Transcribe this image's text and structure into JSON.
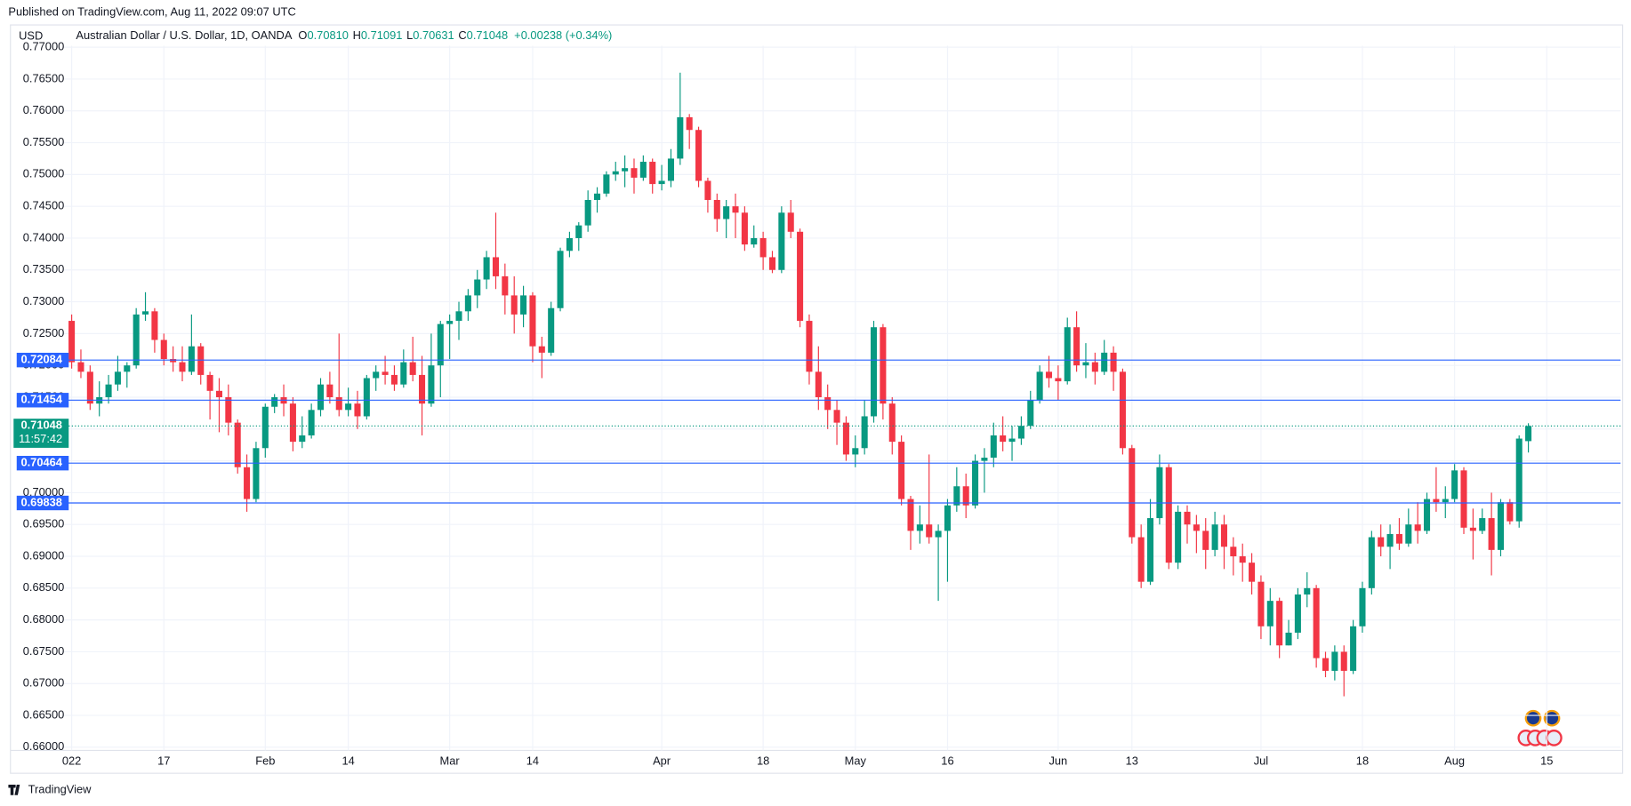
{
  "header": {
    "published": "Published on TradingView.com, Aug 11, 2022 09:07 UTC",
    "brand": "TradingView"
  },
  "chart_data": {
    "type": "candlestick",
    "currency": "USD",
    "legend": {
      "symbol": "Australian Dollar / U.S. Dollar, 1D, OANDA",
      "o_label": "O",
      "o": "0.70810",
      "h_label": "H",
      "h": "0.71091",
      "l_label": "L",
      "l": "0.70631",
      "c_label": "C",
      "c": "0.71048",
      "change": "+0.00238 (+0.34%)"
    },
    "up_color": "#089981",
    "down_color": "#f23645",
    "level_color": "#2962ff",
    "ylim": [
      0.6595,
      0.7735
    ],
    "yticks": [
      {
        "value": 0.66,
        "label": "0.66000"
      },
      {
        "value": 0.665,
        "label": "0.66500"
      },
      {
        "value": 0.67,
        "label": "0.67000"
      },
      {
        "value": 0.675,
        "label": "0.67500"
      },
      {
        "value": 0.68,
        "label": "0.68000"
      },
      {
        "value": 0.685,
        "label": "0.68500"
      },
      {
        "value": 0.69,
        "label": "0.69000"
      },
      {
        "value": 0.695,
        "label": "0.69500"
      },
      {
        "value": 0.7,
        "label": "0.70000"
      },
      {
        "value": 0.705,
        "label": "0.70500"
      },
      {
        "value": 0.71,
        "label": "0.71000"
      },
      {
        "value": 0.715,
        "label": "0.71500"
      },
      {
        "value": 0.72,
        "label": "0.72000"
      },
      {
        "value": 0.725,
        "label": "0.72500"
      },
      {
        "value": 0.73,
        "label": "0.73000"
      },
      {
        "value": 0.735,
        "label": "0.73500"
      },
      {
        "value": 0.74,
        "label": "0.74000"
      },
      {
        "value": 0.745,
        "label": "0.74500"
      },
      {
        "value": 0.75,
        "label": "0.75000"
      },
      {
        "value": 0.755,
        "label": "0.75500"
      },
      {
        "value": 0.76,
        "label": "0.76000"
      },
      {
        "value": 0.765,
        "label": "0.76500"
      },
      {
        "value": 0.77,
        "label": "0.77000"
      }
    ],
    "xlim": [
      -1,
      168
    ],
    "xticks": [
      {
        "value": 0,
        "label": "022"
      },
      {
        "value": 10,
        "label": "17"
      },
      {
        "value": 21,
        "label": "Feb"
      },
      {
        "value": 30,
        "label": "14"
      },
      {
        "value": 41,
        "label": "Mar"
      },
      {
        "value": 50,
        "label": "14"
      },
      {
        "value": 64,
        "label": "Apr"
      },
      {
        "value": 75,
        "label": "18"
      },
      {
        "value": 85,
        "label": "May"
      },
      {
        "value": 95,
        "label": "16"
      },
      {
        "value": 107,
        "label": "Jun"
      },
      {
        "value": 115,
        "label": "13"
      },
      {
        "value": 129,
        "label": "Jul"
      },
      {
        "value": 140,
        "label": "18"
      },
      {
        "value": 150,
        "label": "Aug"
      },
      {
        "value": 160,
        "label": "15"
      }
    ],
    "levels": [
      0.72084,
      0.71454,
      0.70464,
      0.69838
    ],
    "last_price": 0.71048,
    "countdown": "11:57:42",
    "candles": [
      [
        0.727,
        0.728,
        0.7195,
        0.7205
      ],
      [
        0.7205,
        0.7225,
        0.718,
        0.719
      ],
      [
        0.719,
        0.72,
        0.713,
        0.714
      ],
      [
        0.714,
        0.7175,
        0.712,
        0.715
      ],
      [
        0.715,
        0.7185,
        0.714,
        0.717
      ],
      [
        0.717,
        0.7215,
        0.716,
        0.719
      ],
      [
        0.719,
        0.7205,
        0.7165,
        0.72
      ],
      [
        0.72,
        0.729,
        0.7195,
        0.728
      ],
      [
        0.728,
        0.7315,
        0.727,
        0.7285
      ],
      [
        0.7285,
        0.729,
        0.722,
        0.724
      ],
      [
        0.724,
        0.725,
        0.72,
        0.721
      ],
      [
        0.721,
        0.723,
        0.719,
        0.7205
      ],
      [
        0.7205,
        0.723,
        0.7175,
        0.719
      ],
      [
        0.719,
        0.728,
        0.7185,
        0.723
      ],
      [
        0.723,
        0.7235,
        0.717,
        0.7185
      ],
      [
        0.7185,
        0.719,
        0.7115,
        0.716
      ],
      [
        0.716,
        0.718,
        0.7095,
        0.715
      ],
      [
        0.715,
        0.717,
        0.709,
        0.711
      ],
      [
        0.711,
        0.7115,
        0.703,
        0.704
      ],
      [
        0.704,
        0.706,
        0.697,
        0.699
      ],
      [
        0.699,
        0.708,
        0.6985,
        0.707
      ],
      [
        0.707,
        0.714,
        0.7055,
        0.7135
      ],
      [
        0.7135,
        0.7155,
        0.7125,
        0.715
      ],
      [
        0.715,
        0.717,
        0.712,
        0.714
      ],
      [
        0.714,
        0.715,
        0.7065,
        0.708
      ],
      [
        0.708,
        0.712,
        0.707,
        0.709
      ],
      [
        0.709,
        0.714,
        0.7085,
        0.713
      ],
      [
        0.713,
        0.718,
        0.712,
        0.717
      ],
      [
        0.717,
        0.719,
        0.714,
        0.715
      ],
      [
        0.715,
        0.725,
        0.712,
        0.713
      ],
      [
        0.713,
        0.7165,
        0.712,
        0.714
      ],
      [
        0.714,
        0.716,
        0.71,
        0.712
      ],
      [
        0.712,
        0.7185,
        0.7115,
        0.718
      ],
      [
        0.718,
        0.72,
        0.716,
        0.719
      ],
      [
        0.719,
        0.7215,
        0.717,
        0.7185
      ],
      [
        0.7185,
        0.72,
        0.716,
        0.717
      ],
      [
        0.717,
        0.7225,
        0.7165,
        0.7205
      ],
      [
        0.7205,
        0.7245,
        0.7175,
        0.7185
      ],
      [
        0.7185,
        0.7215,
        0.709,
        0.714
      ],
      [
        0.714,
        0.725,
        0.7135,
        0.72
      ],
      [
        0.72,
        0.727,
        0.715,
        0.7265
      ],
      [
        0.7265,
        0.728,
        0.721,
        0.727
      ],
      [
        0.727,
        0.73,
        0.724,
        0.7285
      ],
      [
        0.7285,
        0.732,
        0.727,
        0.731
      ],
      [
        0.731,
        0.735,
        0.729,
        0.7335
      ],
      [
        0.7335,
        0.738,
        0.732,
        0.737
      ],
      [
        0.737,
        0.744,
        0.732,
        0.734
      ],
      [
        0.734,
        0.736,
        0.728,
        0.731
      ],
      [
        0.731,
        0.734,
        0.725,
        0.728
      ],
      [
        0.728,
        0.7325,
        0.726,
        0.731
      ],
      [
        0.731,
        0.7315,
        0.7205,
        0.723
      ],
      [
        0.723,
        0.7245,
        0.718,
        0.722
      ],
      [
        0.722,
        0.73,
        0.7215,
        0.729
      ],
      [
        0.729,
        0.7385,
        0.7285,
        0.738
      ],
      [
        0.738,
        0.741,
        0.737,
        0.74
      ],
      [
        0.74,
        0.7425,
        0.738,
        0.742
      ],
      [
        0.742,
        0.7475,
        0.741,
        0.746
      ],
      [
        0.746,
        0.748,
        0.744,
        0.747
      ],
      [
        0.747,
        0.7505,
        0.7465,
        0.75
      ],
      [
        0.75,
        0.752,
        0.749,
        0.7505
      ],
      [
        0.7505,
        0.753,
        0.748,
        0.751
      ],
      [
        0.751,
        0.7525,
        0.747,
        0.7495
      ],
      [
        0.7495,
        0.753,
        0.749,
        0.752
      ],
      [
        0.752,
        0.7525,
        0.747,
        0.7485
      ],
      [
        0.7485,
        0.7515,
        0.7475,
        0.749
      ],
      [
        0.749,
        0.754,
        0.748,
        0.7525
      ],
      [
        0.7525,
        0.766,
        0.7515,
        0.759
      ],
      [
        0.759,
        0.7595,
        0.754,
        0.757
      ],
      [
        0.757,
        0.7575,
        0.748,
        0.749
      ],
      [
        0.749,
        0.7495,
        0.744,
        0.746
      ],
      [
        0.746,
        0.747,
        0.741,
        0.743
      ],
      [
        0.743,
        0.746,
        0.74,
        0.745
      ],
      [
        0.745,
        0.747,
        0.74,
        0.744
      ],
      [
        0.744,
        0.745,
        0.738,
        0.739
      ],
      [
        0.739,
        0.742,
        0.7385,
        0.74
      ],
      [
        0.74,
        0.741,
        0.735,
        0.737
      ],
      [
        0.737,
        0.738,
        0.7345,
        0.735
      ],
      [
        0.735,
        0.745,
        0.7345,
        0.744
      ],
      [
        0.744,
        0.746,
        0.74,
        0.741
      ],
      [
        0.741,
        0.7415,
        0.726,
        0.727
      ],
      [
        0.727,
        0.728,
        0.717,
        0.719
      ],
      [
        0.719,
        0.723,
        0.713,
        0.715
      ],
      [
        0.715,
        0.717,
        0.71,
        0.713
      ],
      [
        0.713,
        0.7145,
        0.7075,
        0.711
      ],
      [
        0.711,
        0.712,
        0.705,
        0.706
      ],
      [
        0.706,
        0.709,
        0.704,
        0.707
      ],
      [
        0.707,
        0.7145,
        0.706,
        0.712
      ],
      [
        0.712,
        0.727,
        0.711,
        0.726
      ],
      [
        0.726,
        0.7265,
        0.7115,
        0.714
      ],
      [
        0.714,
        0.715,
        0.706,
        0.708
      ],
      [
        0.708,
        0.709,
        0.698,
        0.699
      ],
      [
        0.699,
        0.6995,
        0.691,
        0.694
      ],
      [
        0.694,
        0.698,
        0.692,
        0.695
      ],
      [
        0.695,
        0.706,
        0.692,
        0.693
      ],
      [
        0.693,
        0.695,
        0.683,
        0.694
      ],
      [
        0.694,
        0.699,
        0.686,
        0.698
      ],
      [
        0.698,
        0.704,
        0.697,
        0.701
      ],
      [
        0.701,
        0.703,
        0.696,
        0.698
      ],
      [
        0.698,
        0.706,
        0.6975,
        0.705
      ],
      [
        0.705,
        0.707,
        0.7,
        0.7055
      ],
      [
        0.7055,
        0.711,
        0.704,
        0.709
      ],
      [
        0.709,
        0.712,
        0.7065,
        0.708
      ],
      [
        0.708,
        0.7105,
        0.705,
        0.7085
      ],
      [
        0.7085,
        0.712,
        0.7075,
        0.7105
      ],
      [
        0.7105,
        0.716,
        0.71,
        0.7145
      ],
      [
        0.7145,
        0.72,
        0.714,
        0.719
      ],
      [
        0.719,
        0.7215,
        0.7165,
        0.718
      ],
      [
        0.718,
        0.72,
        0.7145,
        0.7175
      ],
      [
        0.7175,
        0.7275,
        0.717,
        0.726
      ],
      [
        0.726,
        0.7285,
        0.719,
        0.72
      ],
      [
        0.72,
        0.7235,
        0.718,
        0.7205
      ],
      [
        0.7205,
        0.722,
        0.717,
        0.719
      ],
      [
        0.719,
        0.724,
        0.7185,
        0.722
      ],
      [
        0.722,
        0.723,
        0.716,
        0.719
      ],
      [
        0.719,
        0.7195,
        0.706,
        0.707
      ],
      [
        0.707,
        0.7075,
        0.692,
        0.693
      ],
      [
        0.693,
        0.695,
        0.685,
        0.686
      ],
      [
        0.686,
        0.699,
        0.6855,
        0.696
      ],
      [
        0.696,
        0.706,
        0.695,
        0.704
      ],
      [
        0.704,
        0.7045,
        0.688,
        0.689
      ],
      [
        0.689,
        0.698,
        0.688,
        0.697
      ],
      [
        0.697,
        0.698,
        0.692,
        0.695
      ],
      [
        0.695,
        0.6965,
        0.6905,
        0.694
      ],
      [
        0.694,
        0.696,
        0.688,
        0.691
      ],
      [
        0.691,
        0.697,
        0.69,
        0.695
      ],
      [
        0.695,
        0.6965,
        0.688,
        0.6915
      ],
      [
        0.6915,
        0.693,
        0.687,
        0.69
      ],
      [
        0.69,
        0.692,
        0.686,
        0.689
      ],
      [
        0.689,
        0.6905,
        0.684,
        0.686
      ],
      [
        0.686,
        0.687,
        0.677,
        0.679
      ],
      [
        0.679,
        0.685,
        0.676,
        0.683
      ],
      [
        0.683,
        0.6835,
        0.674,
        0.676
      ],
      [
        0.676,
        0.68,
        0.676,
        0.678
      ],
      [
        0.678,
        0.685,
        0.677,
        0.684
      ],
      [
        0.684,
        0.6875,
        0.682,
        0.685
      ],
      [
        0.685,
        0.6855,
        0.6725,
        0.674
      ],
      [
        0.674,
        0.675,
        0.671,
        0.672
      ],
      [
        0.672,
        0.676,
        0.6705,
        0.675
      ],
      [
        0.675,
        0.676,
        0.668,
        0.672
      ],
      [
        0.672,
        0.68,
        0.6715,
        0.679
      ],
      [
        0.679,
        0.686,
        0.678,
        0.685
      ],
      [
        0.685,
        0.694,
        0.684,
        0.693
      ],
      [
        0.693,
        0.695,
        0.69,
        0.6915
      ],
      [
        0.6915,
        0.695,
        0.688,
        0.6935
      ],
      [
        0.6935,
        0.696,
        0.691,
        0.692
      ],
      [
        0.692,
        0.6975,
        0.6915,
        0.695
      ],
      [
        0.695,
        0.6985,
        0.692,
        0.694
      ],
      [
        0.694,
        0.7,
        0.6935,
        0.699
      ],
      [
        0.699,
        0.704,
        0.697,
        0.6985
      ],
      [
        0.6985,
        0.701,
        0.696,
        0.699
      ],
      [
        0.699,
        0.7045,
        0.6985,
        0.7035
      ],
      [
        0.7035,
        0.704,
        0.6935,
        0.6945
      ],
      [
        0.6945,
        0.6975,
        0.6895,
        0.694
      ],
      [
        0.694,
        0.6975,
        0.6935,
        0.696
      ],
      [
        0.696,
        0.7,
        0.687,
        0.691
      ],
      [
        0.691,
        0.699,
        0.69,
        0.6985
      ],
      [
        0.6985,
        0.699,
        0.695,
        0.6955
      ],
      [
        0.6955,
        0.709,
        0.6945,
        0.7085
      ],
      [
        0.7081,
        0.71091,
        0.70631,
        0.71048
      ]
    ]
  }
}
